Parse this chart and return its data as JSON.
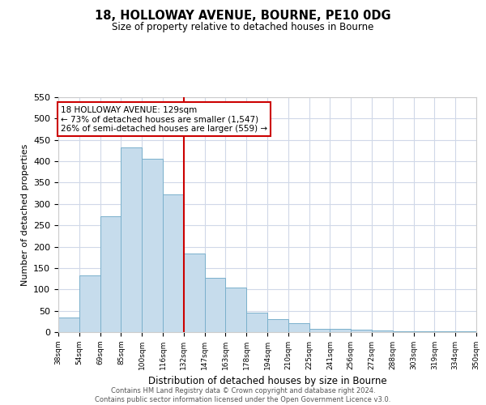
{
  "title": "18, HOLLOWAY AVENUE, BOURNE, PE10 0DG",
  "subtitle": "Size of property relative to detached houses in Bourne",
  "xlabel": "Distribution of detached houses by size in Bourne",
  "ylabel": "Number of detached properties",
  "categories": [
    "38sqm",
    "54sqm",
    "69sqm",
    "85sqm",
    "100sqm",
    "116sqm",
    "132sqm",
    "147sqm",
    "163sqm",
    "178sqm",
    "194sqm",
    "210sqm",
    "225sqm",
    "241sqm",
    "256sqm",
    "272sqm",
    "288sqm",
    "303sqm",
    "319sqm",
    "334sqm",
    "350sqm"
  ],
  "values": [
    35,
    133,
    272,
    432,
    405,
    323,
    184,
    127,
    105,
    46,
    30,
    20,
    8,
    7,
    5,
    3,
    2,
    1,
    1,
    1
  ],
  "bar_color": "#c6dcec",
  "bar_edge_color": "#7ab0cc",
  "vline_index": 6,
  "vline_color": "#cc0000",
  "ann_line1": "18 HOLLOWAY AVENUE: 129sqm",
  "ann_line2": "← 73% of detached houses are smaller (1,547)",
  "ann_line3": "26% of semi-detached houses are larger (559) →",
  "ann_box_edge": "#cc0000",
  "ylim": [
    0,
    550
  ],
  "yticks": [
    0,
    50,
    100,
    150,
    200,
    250,
    300,
    350,
    400,
    450,
    500,
    550
  ],
  "footer_line1": "Contains HM Land Registry data © Crown copyright and database right 2024.",
  "footer_line2": "Contains public sector information licensed under the Open Government Licence v3.0."
}
